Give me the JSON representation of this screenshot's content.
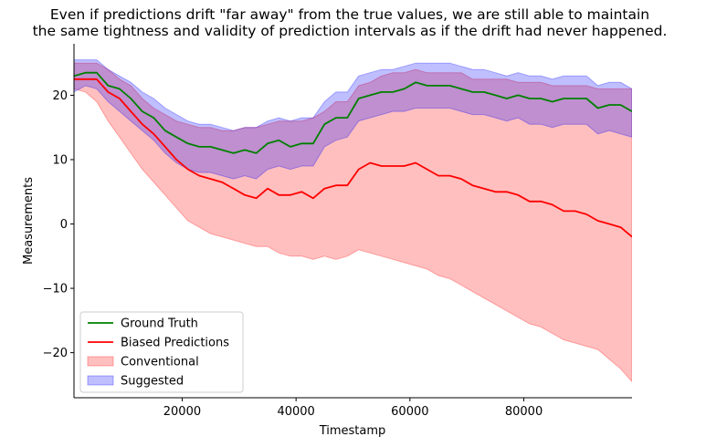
{
  "chart_data": {
    "type": "line",
    "title_line1": "Even if predictions drift \"far away\" from the true values, we are still able to maintain",
    "title_line2": "the same tightness and validity of prediction intervals as if the drift had never happened.",
    "xlabel": "Timestamp",
    "ylabel": "Measurements",
    "xlim": [
      1000,
      99000
    ],
    "ylim": [
      -27,
      28
    ],
    "xticks": [
      20000,
      40000,
      60000,
      80000
    ],
    "xtick_labels": [
      "20000",
      "40000",
      "60000",
      "80000"
    ],
    "yticks": [
      -20,
      -10,
      0,
      10,
      20
    ],
    "ytick_labels": [
      "−20",
      "−10",
      "0",
      "10",
      "20"
    ],
    "grid": false,
    "legend_position": "lower-left",
    "x": [
      1000,
      3000,
      5000,
      7000,
      9000,
      11000,
      13000,
      15000,
      17000,
      19000,
      21000,
      23000,
      25000,
      27000,
      29000,
      31000,
      33000,
      35000,
      37000,
      39000,
      41000,
      43000,
      45000,
      47000,
      49000,
      51000,
      53000,
      55000,
      57000,
      59000,
      61000,
      63000,
      65000,
      67000,
      69000,
      71000,
      73000,
      75000,
      77000,
      79000,
      81000,
      83000,
      85000,
      87000,
      89000,
      91000,
      93000,
      95000,
      97000,
      99000
    ],
    "series": [
      {
        "name": "Ground Truth",
        "kind": "line",
        "color": "#008000",
        "values": [
          23.0,
          23.5,
          23.5,
          21.5,
          21.0,
          19.5,
          17.5,
          16.5,
          14.5,
          13.5,
          12.5,
          12.0,
          12.0,
          11.5,
          11.0,
          11.5,
          11.0,
          12.5,
          13.0,
          12.0,
          12.5,
          12.5,
          15.5,
          16.5,
          16.5,
          19.5,
          20.0,
          20.5,
          20.5,
          21.0,
          22.0,
          21.5,
          21.5,
          21.5,
          21.0,
          20.5,
          20.5,
          20.0,
          19.5,
          20.0,
          19.5,
          19.5,
          19.0,
          19.5,
          19.5,
          19.5,
          18.0,
          18.5,
          18.5,
          17.5
        ]
      },
      {
        "name": "Biased Predictions",
        "kind": "line",
        "color": "#ff0000",
        "values": [
          22.5,
          22.5,
          22.5,
          20.5,
          19.5,
          17.5,
          15.5,
          14.0,
          12.0,
          10.0,
          8.5,
          7.5,
          7.0,
          6.5,
          5.5,
          4.5,
          4.0,
          5.5,
          4.5,
          4.5,
          5.0,
          4.0,
          5.5,
          6.0,
          6.0,
          8.5,
          9.5,
          9.0,
          9.0,
          9.0,
          9.5,
          8.5,
          7.5,
          7.5,
          7.0,
          6.0,
          5.5,
          5.0,
          5.0,
          4.5,
          3.5,
          3.5,
          3.0,
          2.0,
          2.0,
          1.5,
          0.5,
          0.0,
          -0.5,
          -2.0
        ]
      },
      {
        "name": "Conventional",
        "kind": "band",
        "color": "#ff0000",
        "lower": [
          21.0,
          20.5,
          19.0,
          16.0,
          13.5,
          11.0,
          8.5,
          6.5,
          4.5,
          2.5,
          0.5,
          -0.5,
          -1.5,
          -2.0,
          -2.5,
          -3.0,
          -3.5,
          -3.5,
          -4.5,
          -5.0,
          -5.0,
          -5.5,
          -5.0,
          -5.5,
          -5.0,
          -4.0,
          -4.5,
          -5.0,
          -5.5,
          -6.0,
          -6.5,
          -7.0,
          -8.0,
          -8.5,
          -9.5,
          -10.5,
          -11.5,
          -12.5,
          -13.5,
          -14.5,
          -15.5,
          -16.0,
          -17.0,
          -18.0,
          -18.5,
          -19.0,
          -19.5,
          -21.0,
          -22.5,
          -24.5
        ],
        "upper": [
          25.0,
          25.0,
          25.0,
          24.0,
          22.5,
          21.5,
          19.5,
          18.0,
          17.0,
          16.0,
          15.5,
          15.0,
          15.0,
          14.5,
          14.5,
          15.0,
          15.0,
          15.5,
          16.0,
          16.0,
          16.0,
          16.5,
          17.5,
          19.0,
          19.0,
          21.5,
          22.0,
          23.0,
          23.5,
          23.5,
          24.0,
          23.5,
          23.5,
          23.5,
          23.5,
          22.5,
          22.5,
          22.5,
          22.5,
          22.0,
          22.0,
          22.0,
          21.5,
          21.5,
          21.5,
          21.5,
          21.0,
          21.0,
          21.0,
          21.0
        ]
      },
      {
        "name": "Suggested",
        "kind": "band",
        "color": "#0000ff",
        "lower": [
          20.5,
          21.5,
          21.0,
          19.0,
          17.5,
          16.0,
          14.5,
          13.0,
          11.0,
          9.5,
          8.5,
          8.0,
          8.0,
          7.5,
          7.0,
          7.5,
          7.0,
          8.5,
          9.0,
          8.5,
          9.0,
          9.0,
          12.0,
          13.0,
          13.5,
          16.0,
          16.5,
          17.0,
          17.5,
          17.5,
          18.0,
          18.0,
          18.0,
          18.0,
          17.5,
          17.0,
          17.0,
          16.5,
          16.0,
          16.5,
          15.5,
          15.5,
          15.0,
          15.5,
          15.5,
          15.5,
          14.0,
          14.5,
          14.0,
          13.5
        ],
        "upper": [
          25.5,
          25.5,
          25.5,
          24.0,
          23.0,
          22.0,
          20.5,
          19.5,
          18.0,
          17.0,
          16.0,
          15.5,
          15.5,
          15.0,
          14.5,
          15.0,
          15.0,
          16.0,
          16.5,
          16.0,
          16.5,
          16.5,
          19.0,
          20.5,
          20.5,
          23.0,
          23.5,
          24.0,
          24.0,
          24.5,
          25.0,
          25.0,
          25.0,
          25.0,
          24.5,
          24.0,
          24.0,
          23.5,
          23.0,
          23.5,
          23.0,
          23.0,
          22.5,
          23.0,
          23.0,
          23.0,
          21.5,
          22.0,
          22.0,
          21.0
        ]
      }
    ]
  }
}
